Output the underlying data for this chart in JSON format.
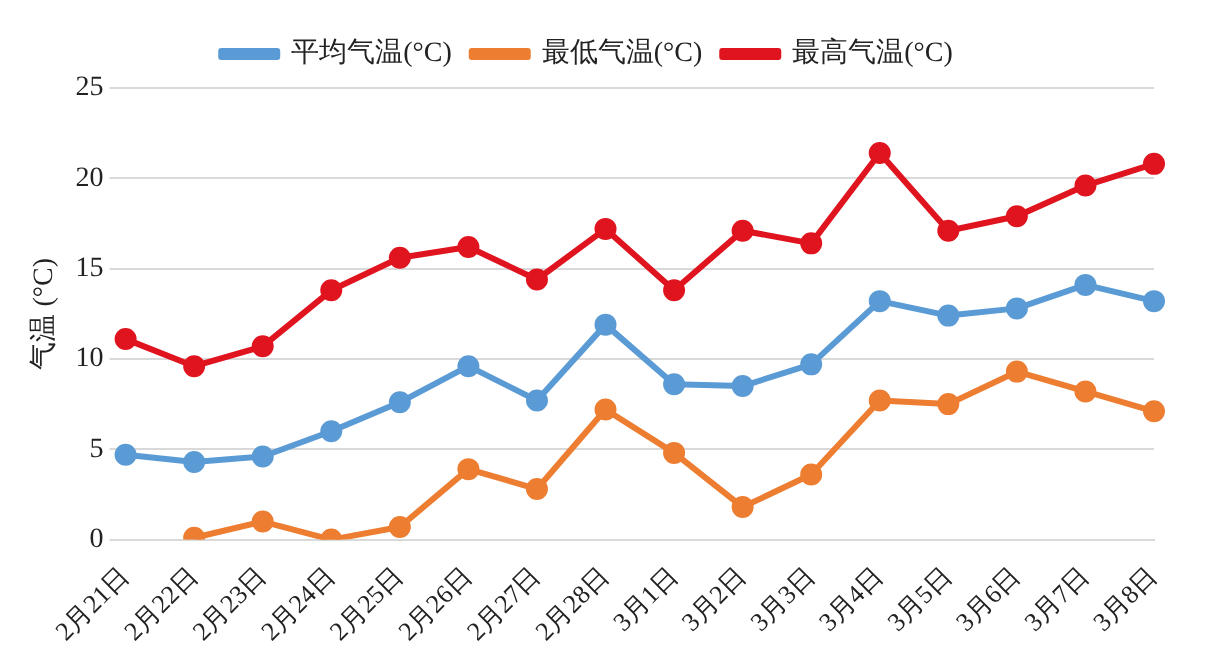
{
  "chart_data": {
    "type": "line",
    "ylabel": "气温 (°C)",
    "categories": [
      "2月21日",
      "2月22日",
      "2月23日",
      "2月24日",
      "2月25日",
      "2月26日",
      "2月27日",
      "2月28日",
      "3月1日",
      "3月2日",
      "3月3日",
      "3月4日",
      "3月5日",
      "3月6日",
      "3月7日",
      "3月8日"
    ],
    "series": [
      {
        "name": "平均气温(°C)",
        "color": "#5b9bd5",
        "values": [
          4.7,
          4.3,
          4.6,
          6.0,
          7.6,
          9.6,
          7.7,
          11.9,
          8.6,
          8.5,
          9.7,
          13.2,
          12.4,
          12.8,
          14.1,
          13.2
        ]
      },
      {
        "name": "最低气温(°C)",
        "color": "#ed7d31",
        "values": [
          null,
          0.1,
          1.0,
          0,
          0.7,
          3.9,
          2.8,
          7.2,
          4.8,
          1.8,
          3.6,
          7.7,
          7.5,
          9.3,
          8.2,
          7.1
        ]
      },
      {
        "name": "最高气温(°C)",
        "color": "#e0141e",
        "values": [
          11.1,
          9.6,
          10.7,
          13.8,
          15.6,
          16.2,
          14.4,
          17.2,
          13.8,
          17.1,
          16.4,
          21.4,
          17.1,
          17.9,
          19.6,
          20.8
        ]
      }
    ],
    "ylim": [
      0,
      25
    ],
    "yticks": [
      0,
      5,
      10,
      15,
      20,
      25
    ],
    "grid": "y",
    "legend": "top",
    "marker": "circle",
    "line_style": "solid"
  }
}
